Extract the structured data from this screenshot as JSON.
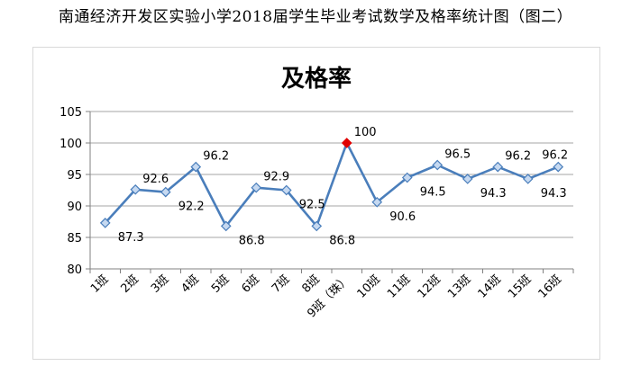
{
  "page": {
    "heading": "南通经济开发区实验小学2018届学生毕业考试数学及格率统计图（图二）"
  },
  "chart_data": {
    "type": "line",
    "title": "及格率",
    "xlabel": "",
    "ylabel": "",
    "categories": [
      "1班",
      "2班",
      "3班",
      "4班",
      "5班",
      "6班",
      "7班",
      "8班",
      "9班（珠）",
      "10班",
      "11班",
      "12班",
      "13班",
      "14班",
      "15班",
      "16班"
    ],
    "values": [
      87.3,
      92.6,
      92.2,
      96.2,
      86.8,
      92.9,
      92.5,
      86.8,
      100,
      90.6,
      94.5,
      96.5,
      94.3,
      96.2,
      94.3,
      96.2
    ],
    "data_labels": [
      "87.3",
      "92.6",
      "92.2",
      "96.2",
      "86.8",
      "92.9",
      "92.5",
      "86.8",
      "100",
      "90.6",
      "94.5",
      "96.5",
      "94.3",
      "96.2",
      "94.3",
      "96.2"
    ],
    "highlight_index": 8,
    "ylim": [
      80,
      105
    ],
    "yticks": [
      80,
      85,
      90,
      95,
      100,
      105
    ],
    "grid": true,
    "legend": "none",
    "colors": {
      "line": "#4a7ebb",
      "marker_fill": "#c6d9f1",
      "marker_stroke": "#4a7ebb",
      "highlight": "#e00000",
      "grid": "#a6a6a6"
    }
  }
}
